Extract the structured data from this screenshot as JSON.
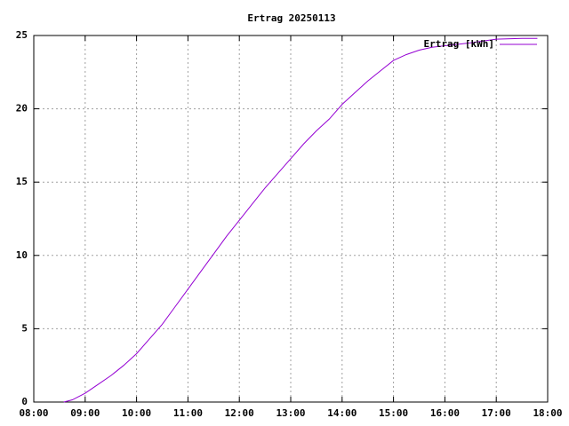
{
  "chart_data": {
    "type": "line",
    "title": "Ertrag 20250113",
    "x": [
      "08:35",
      "08:45",
      "09:00",
      "09:15",
      "09:30",
      "09:45",
      "10:00",
      "10:15",
      "10:30",
      "10:45",
      "11:00",
      "11:15",
      "11:30",
      "11:45",
      "12:00",
      "12:15",
      "12:30",
      "12:45",
      "13:00",
      "13:15",
      "13:30",
      "13:45",
      "14:00",
      "14:15",
      "14:30",
      "14:45",
      "15:00",
      "15:15",
      "15:30",
      "15:45",
      "16:00",
      "16:30",
      "17:00",
      "17:30",
      "17:48"
    ],
    "series": [
      {
        "name": "Ertrag [kWh]",
        "color": "#9400d3",
        "values": [
          0,
          0.15,
          0.6,
          1.2,
          1.8,
          2.5,
          3.3,
          4.3,
          5.3,
          6.5,
          7.7,
          8.9,
          10.1,
          11.3,
          12.4,
          13.5,
          14.6,
          15.6,
          16.6,
          17.6,
          18.5,
          19.3,
          20.3,
          21.1,
          21.9,
          22.6,
          23.3,
          23.7,
          24.0,
          24.2,
          24.3,
          24.5,
          24.75,
          24.8,
          24.8
        ]
      }
    ],
    "xlim": [
      "08:00",
      "18:00"
    ],
    "xticks": [
      "08:00",
      "09:00",
      "10:00",
      "11:00",
      "12:00",
      "13:00",
      "14:00",
      "15:00",
      "16:00",
      "17:00",
      "18:00"
    ],
    "ylim": [
      0,
      25
    ],
    "yticks": [
      0,
      5,
      10,
      15,
      20,
      25
    ],
    "grid": true,
    "legend": "top-right"
  }
}
